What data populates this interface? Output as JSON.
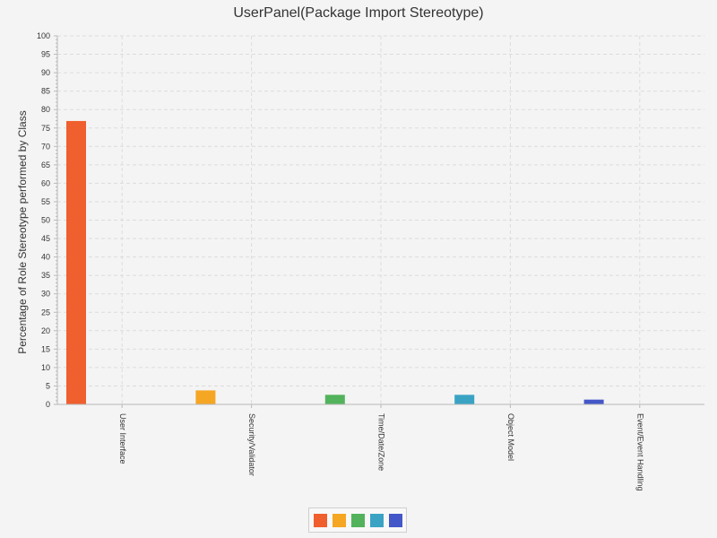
{
  "chart_data": {
    "type": "bar",
    "title": "UserPanel(Package Import Stereotype)",
    "xlabel": "",
    "ylabel": "Percentage of Role Stereotype performed by Class",
    "ylim": [
      0,
      100
    ],
    "y_ticks": [
      0,
      5,
      10,
      15,
      20,
      25,
      30,
      35,
      40,
      45,
      50,
      55,
      60,
      65,
      70,
      75,
      80,
      85,
      90,
      95,
      100
    ],
    "grid": true,
    "legend_position": "bottom-center",
    "categories": [
      "User Interface",
      "Security/Validator",
      "Time/Date/Zone",
      "Object Model",
      "Event/Event Handling"
    ],
    "values": [
      76.9,
      3.8,
      2.6,
      2.6,
      1.3
    ],
    "colors": [
      "#f05f2e",
      "#f5a623",
      "#52b35c",
      "#3aa3c4",
      "#4457c8"
    ]
  }
}
